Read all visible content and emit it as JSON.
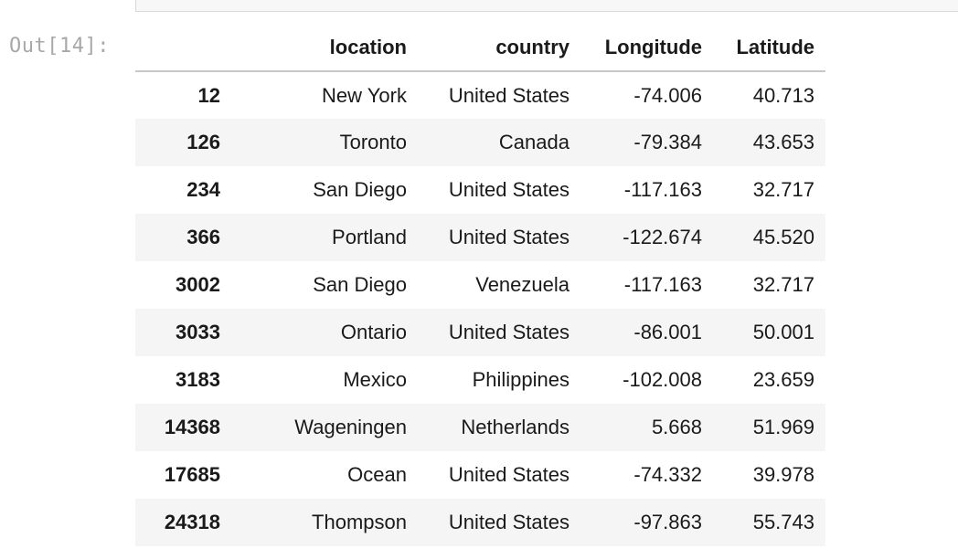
{
  "prompt": "Out[14]:",
  "table": {
    "columns": [
      "",
      "location",
      "country",
      "Longitude",
      "Latitude"
    ],
    "rows": [
      {
        "index": "12",
        "location": "New York",
        "country": "United States",
        "longitude": "-74.006",
        "latitude": "40.713"
      },
      {
        "index": "126",
        "location": "Toronto",
        "country": "Canada",
        "longitude": "-79.384",
        "latitude": "43.653"
      },
      {
        "index": "234",
        "location": "San Diego",
        "country": "United States",
        "longitude": "-117.163",
        "latitude": "32.717"
      },
      {
        "index": "366",
        "location": "Portland",
        "country": "United States",
        "longitude": "-122.674",
        "latitude": "45.520"
      },
      {
        "index": "3002",
        "location": "San Diego",
        "country": "Venezuela",
        "longitude": "-117.163",
        "latitude": "32.717"
      },
      {
        "index": "3033",
        "location": "Ontario",
        "country": "United States",
        "longitude": "-86.001",
        "latitude": "50.001"
      },
      {
        "index": "3183",
        "location": "Mexico",
        "country": "Philippines",
        "longitude": "-102.008",
        "latitude": "23.659"
      },
      {
        "index": "14368",
        "location": "Wageningen",
        "country": "Netherlands",
        "longitude": "5.668",
        "latitude": "51.969"
      },
      {
        "index": "17685",
        "location": "Ocean",
        "country": "United States",
        "longitude": "-74.332",
        "latitude": "39.978"
      },
      {
        "index": "24318",
        "location": "Thompson",
        "country": "United States",
        "longitude": "-97.863",
        "latitude": "55.743"
      }
    ]
  }
}
